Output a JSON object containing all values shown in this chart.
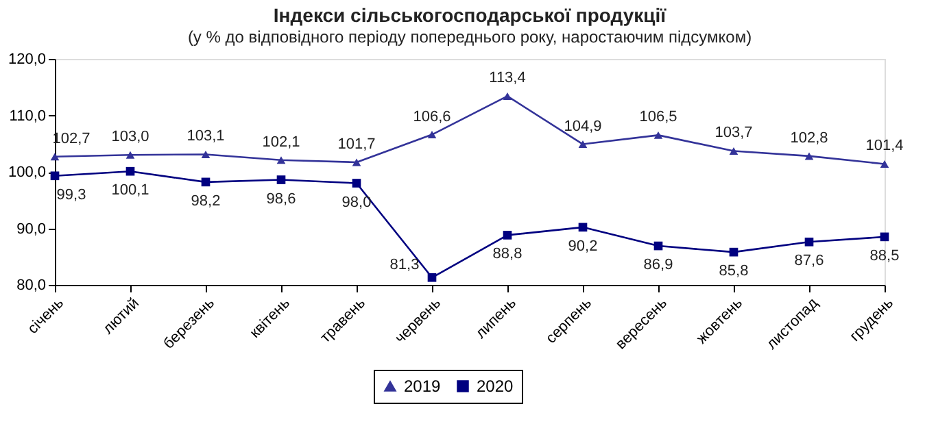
{
  "chart_data": {
    "type": "line",
    "title": "Індекси сільськогосподарської продукції",
    "subtitle": "(у % до відповідного періоду попереднього року, наростаючим підсумком)",
    "categories": [
      "січень",
      "лютий",
      "березень",
      "квітень",
      "травень",
      "червень",
      "липень",
      "серпень",
      "вересень",
      "жовтень",
      "листопад",
      "грудень"
    ],
    "series": [
      {
        "name": "2019",
        "color": "#333399",
        "marker": "triangle",
        "values": [
          102.7,
          103.0,
          103.1,
          102.1,
          101.7,
          106.6,
          113.4,
          104.9,
          106.5,
          103.7,
          102.8,
          101.4
        ],
        "value_labels": [
          "102,7",
          "103,0",
          "103,1",
          "102,1",
          "101,7",
          "106,6",
          "113,4",
          "104,9",
          "106,5",
          "103,7",
          "102,8",
          "101,4"
        ]
      },
      {
        "name": "2020",
        "color": "#000080",
        "marker": "square",
        "values": [
          99.3,
          100.1,
          98.2,
          98.6,
          98.0,
          81.3,
          88.8,
          90.2,
          86.9,
          85.8,
          87.6,
          88.5
        ],
        "value_labels": [
          "99,3",
          "100,1",
          "98,2",
          "98,6",
          "98,0",
          "81,3",
          "88,8",
          "90,2",
          "86,9",
          "85,8",
          "87,6",
          "88,5"
        ]
      }
    ],
    "ylim": [
      80,
      120
    ],
    "yticks": [
      {
        "value": 80,
        "label": "80,0"
      },
      {
        "value": 90,
        "label": "90,0"
      },
      {
        "value": 100,
        "label": "100,0"
      },
      {
        "value": 110,
        "label": "110,0"
      },
      {
        "value": 120,
        "label": "120,0"
      }
    ],
    "grid": false,
    "legend": "bottom"
  }
}
